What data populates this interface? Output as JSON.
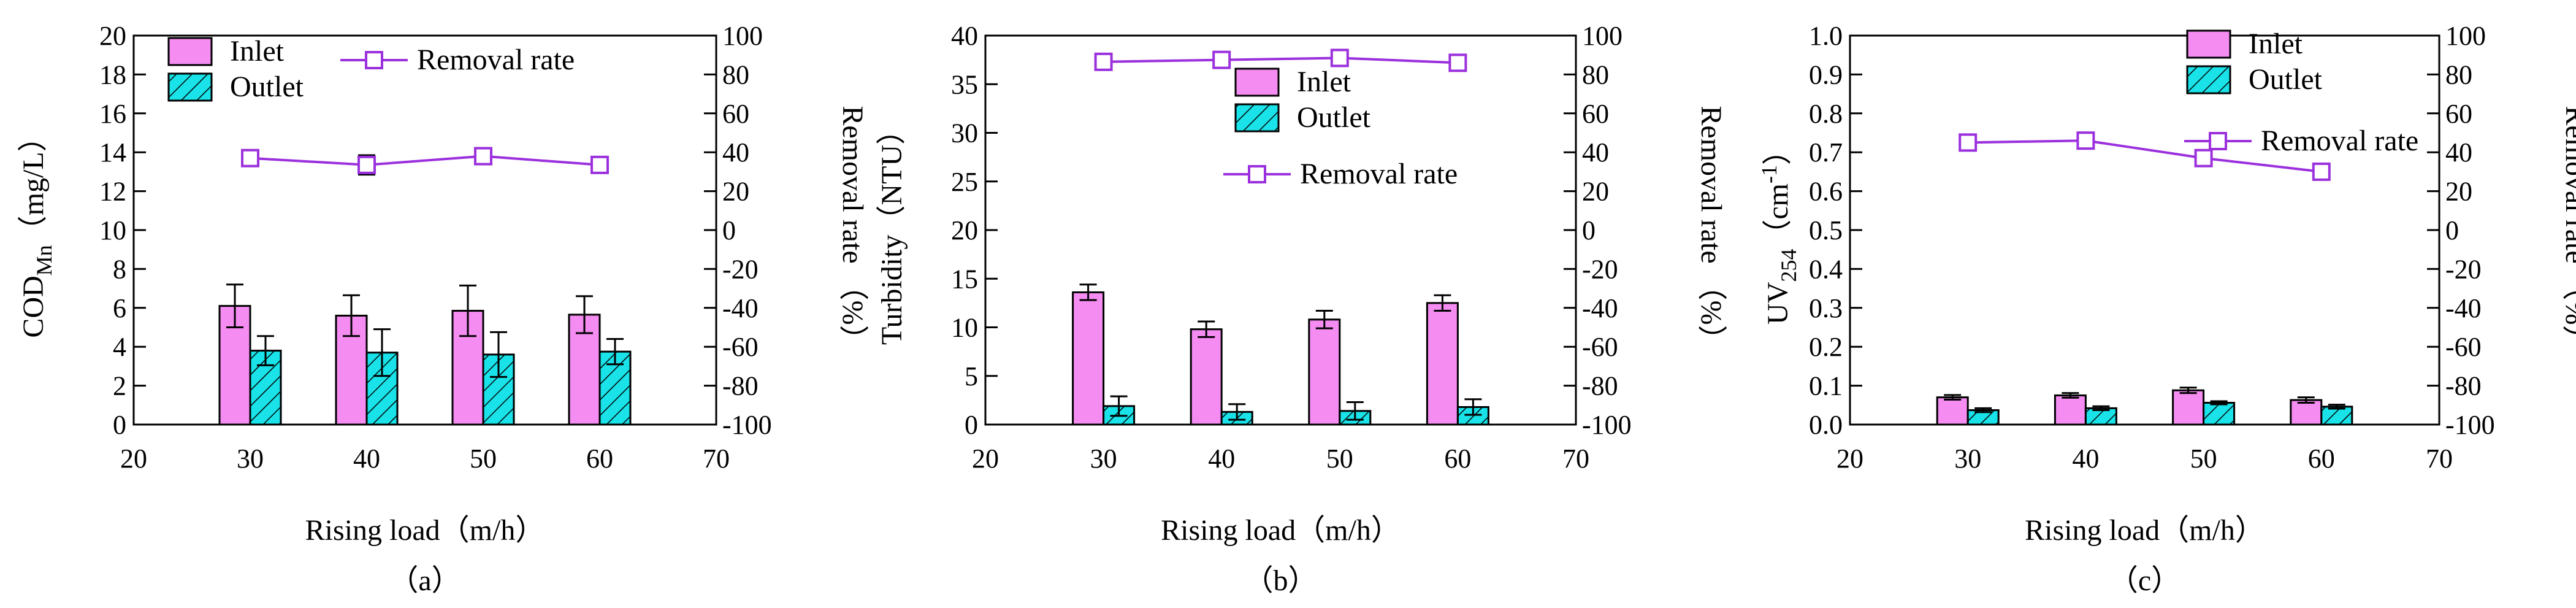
{
  "colors": {
    "inlet": "#f48cf2",
    "outlet": "#19e2e8",
    "removal": "#9b30dd",
    "axis": "#000000"
  },
  "chart_data": [
    {
      "type": "bar",
      "panel_label": "（a）",
      "x": [
        30,
        40,
        50,
        60
      ],
      "xlim": [
        20,
        70
      ],
      "xticks": [
        "20",
        "30",
        "40",
        "50",
        "60",
        "70"
      ],
      "xlabel": "Rising load（m/h）",
      "ylabel_main": "COD",
      "ylabel_sub": "Mn",
      "ylabel_tail": "（mg/L）",
      "ylim": [
        0,
        20
      ],
      "yticks": [
        "0",
        "2",
        "4",
        "6",
        "8",
        "10",
        "12",
        "14",
        "16",
        "18",
        "20"
      ],
      "y2label": "Removal rate （%）",
      "y2lim": [
        -100,
        100
      ],
      "y2ticks": [
        "-100",
        "-80",
        "-60",
        "-40",
        "-20",
        "0",
        "20",
        "40",
        "60",
        "80",
        "100"
      ],
      "legend": {
        "inlet": "Inlet",
        "outlet": "Outlet",
        "removal": "Removal rate"
      },
      "series": [
        {
          "name": "Inlet",
          "values": [
            6.1,
            5.6,
            5.85,
            5.65
          ],
          "errors": [
            1.1,
            1.05,
            1.3,
            0.95
          ]
        },
        {
          "name": "Outlet",
          "values": [
            3.8,
            3.7,
            3.6,
            3.75
          ],
          "errors": [
            0.75,
            1.2,
            1.15,
            0.65
          ]
        },
        {
          "name": "Removal rate",
          "axis": "right",
          "values": [
            37,
            33.5,
            38,
            33.5
          ],
          "errors": [
            4,
            5,
            4,
            3
          ]
        }
      ]
    },
    {
      "type": "bar",
      "panel_label": "（b）",
      "x": [
        30,
        40,
        50,
        60
      ],
      "xlim": [
        20,
        70
      ],
      "xticks": [
        "20",
        "30",
        "40",
        "50",
        "60",
        "70"
      ],
      "xlabel": "Rising load（m/h）",
      "ylabel_main": "Turbidity（NTU）",
      "ylabel_sub": "",
      "ylabel_tail": "",
      "ylim": [
        0,
        40
      ],
      "yticks": [
        "0",
        "5",
        "10",
        "15",
        "20",
        "25",
        "30",
        "35",
        "40"
      ],
      "y2label": "Removal rate （%）",
      "y2lim": [
        -100,
        100
      ],
      "y2ticks": [
        "-100",
        "-80",
        "-60",
        "-40",
        "-20",
        "0",
        "20",
        "40",
        "60",
        "80",
        "100"
      ],
      "legend": {
        "inlet": "Inlet",
        "outlet": "Outlet",
        "removal": "Removal rate"
      },
      "series": [
        {
          "name": "Inlet",
          "values": [
            13.6,
            9.8,
            10.8,
            12.5
          ],
          "errors": [
            0.8,
            0.8,
            0.9,
            0.8
          ]
        },
        {
          "name": "Outlet",
          "values": [
            1.9,
            1.3,
            1.4,
            1.8
          ],
          "errors": [
            1.0,
            0.8,
            0.9,
            0.8
          ]
        },
        {
          "name": "Removal rate",
          "axis": "right",
          "values": [
            86.5,
            87.5,
            88.5,
            86
          ],
          "errors": [
            3,
            3,
            3,
            3
          ]
        }
      ]
    },
    {
      "type": "bar",
      "panel_label": "（c）",
      "x": [
        30,
        40,
        50,
        60
      ],
      "xlim": [
        20,
        70
      ],
      "xticks": [
        "20",
        "30",
        "40",
        "50",
        "60",
        "70"
      ],
      "xlabel": "Rising load（m/h）",
      "ylabel_main": "UV",
      "ylabel_sub": "254",
      "ylabel_tail": "（cm",
      "ylabel_sup": "-1",
      "ylabel_close": "）",
      "ylim": [
        0,
        1.0
      ],
      "yticks": [
        "0.0",
        "0.1",
        "0.2",
        "0.3",
        "0.4",
        "0.5",
        "0.6",
        "0.7",
        "0.8",
        "0.9",
        "1.0"
      ],
      "y2label": "Removal rate （%）",
      "y2lim": [
        -100,
        100
      ],
      "y2ticks": [
        "-100",
        "-80",
        "-60",
        "-40",
        "-20",
        "0",
        "20",
        "40",
        "60",
        "80",
        "100"
      ],
      "legend": {
        "inlet": "Inlet",
        "outlet": "Outlet",
        "removal": "Removal rate"
      },
      "series": [
        {
          "name": "Inlet",
          "values": [
            0.07,
            0.075,
            0.088,
            0.063
          ],
          "errors": [
            0.006,
            0.006,
            0.007,
            0.007
          ]
        },
        {
          "name": "Outlet",
          "values": [
            0.037,
            0.042,
            0.056,
            0.046
          ],
          "errors": [
            0.005,
            0.005,
            0.004,
            0.005
          ]
        },
        {
          "name": "Removal rate",
          "axis": "right",
          "values": [
            45,
            46,
            37,
            30
          ],
          "errors": [
            4,
            3,
            3,
            4
          ]
        }
      ]
    }
  ]
}
